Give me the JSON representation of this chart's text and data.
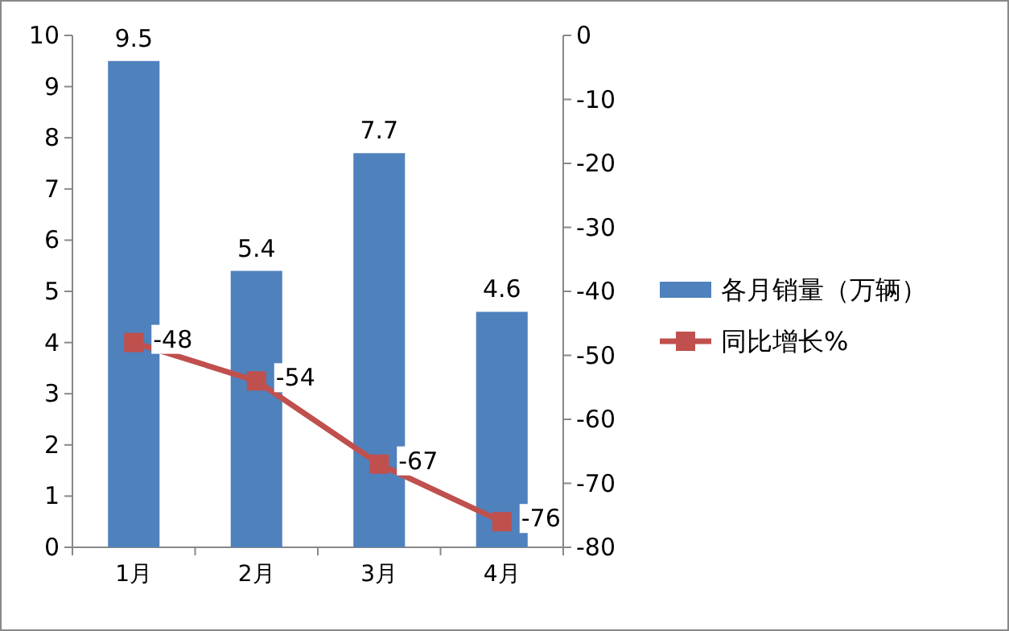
{
  "chart_data": {
    "type": "bar",
    "categories": [
      "1月",
      "2月",
      "3月",
      "4月"
    ],
    "series": [
      {
        "name": "各月销量（万辆）",
        "color": "#4f81bd",
        "values": [
          9.5,
          5.4,
          7.7,
          4.6
        ]
      },
      {
        "name": "同比增长%",
        "type": "line",
        "axis": "y2",
        "color": "#c0504d",
        "marker": "square",
        "values": [
          -48,
          -54,
          -67,
          -76
        ]
      }
    ],
    "ylim": [
      0,
      10
    ],
    "yticks": [
      0,
      1,
      2,
      3,
      4,
      5,
      6,
      7,
      8,
      9,
      10
    ],
    "y2lim": [
      -80,
      0
    ],
    "y2ticks": [
      -80,
      -70,
      -60,
      -50,
      -40,
      -30,
      -20,
      -10,
      0
    ],
    "legend": "right",
    "data_labels": true
  }
}
